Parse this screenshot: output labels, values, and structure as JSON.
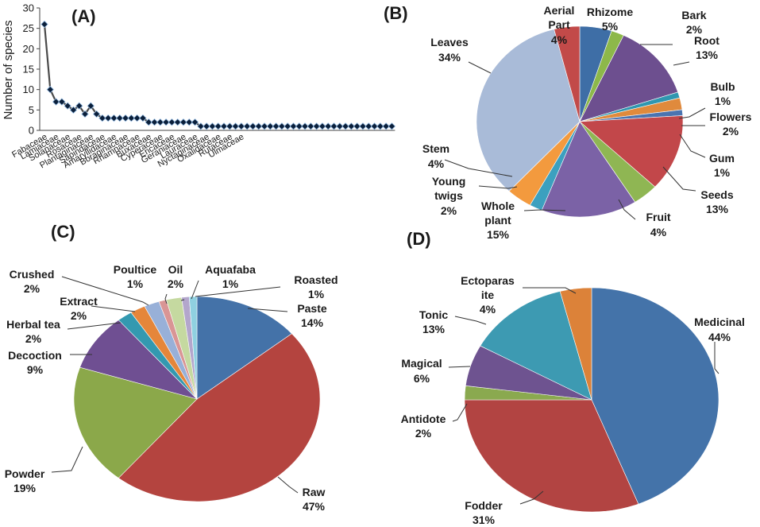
{
  "chart_data": [
    {
      "panel": "(A)",
      "type": "line",
      "title": "",
      "xlabel": "",
      "ylabel": "Number of species",
      "ylim": [
        0,
        30
      ],
      "yticks": [
        0,
        5,
        10,
        15,
        20,
        25,
        30
      ],
      "grid": false,
      "tick_labels": [
        "Fabaceae",
        "Lamiaceae",
        "Solanaceae",
        "Rosaceae",
        "Plantaginaceae",
        "Sapindaceae",
        "Amaryllidaceae",
        "Boraginaceae",
        "Rhamnaceae",
        "Buxaceae",
        "Cyperaceae",
        "Ericaceae",
        "Geraniaceae",
        "Lauraceae",
        "Nyctaginaceae",
        "Oxalidaceae",
        "Rutaceae",
        "Ulmaceae"
      ],
      "tick_positions": [
        0,
        2,
        4,
        6,
        8,
        10,
        12,
        14,
        16,
        18,
        20,
        22,
        24,
        26,
        28,
        30,
        32,
        34
      ],
      "values": [
        26,
        10,
        7,
        7,
        6,
        5,
        6,
        4,
        6,
        4,
        3,
        3,
        3,
        3,
        3,
        3,
        3,
        3,
        2,
        2,
        2,
        2,
        2,
        2,
        2,
        2,
        2,
        1,
        1,
        1,
        1,
        1,
        1,
        1,
        1,
        1,
        1,
        1,
        1,
        1,
        1,
        1,
        1,
        1,
        1,
        1,
        1,
        1,
        1,
        1,
        1,
        1,
        1,
        1,
        1,
        1,
        1,
        1,
        1,
        1,
        1
      ]
    },
    {
      "panel": "(B)",
      "type": "pie",
      "slices": [
        {
          "label": "Rhizome",
          "value": 5,
          "pct": "5%",
          "color": "#3e6ea6"
        },
        {
          "label": "Bark",
          "value": 2,
          "pct": "2%",
          "color": "#8db84a"
        },
        {
          "label": "Root",
          "value": 13,
          "pct": "13%",
          "color": "#6d4f8f"
        },
        {
          "label": "Bulb",
          "value": 1,
          "pct": "1%",
          "color": "#2f97b0"
        },
        {
          "label": "Flowers",
          "value": 2,
          "pct": "2%",
          "color": "#e08a3c"
        },
        {
          "label": "Gum",
          "value": 1,
          "pct": "1%",
          "color": "#4a74b0"
        },
        {
          "label": "Seeds",
          "value": 13,
          "pct": "13%",
          "color": "#c2474a"
        },
        {
          "label": "Fruit",
          "value": 4,
          "pct": "4%",
          "color": "#8fb653"
        },
        {
          "label": "Whole plant",
          "value": 15,
          "pct": "15%",
          "color": "#7b62a6"
        },
        {
          "label": "Young twigs",
          "value": 2,
          "pct": "2%",
          "color": "#3ca0bf"
        },
        {
          "label": "Stem",
          "value": 4,
          "pct": "4%",
          "color": "#f39a3e"
        },
        {
          "label": "Leaves",
          "value": 34,
          "pct": "34%",
          "color": "#a9bbd8"
        },
        {
          "label": "Aerial Part",
          "value": 4,
          "pct": "4%",
          "color": "#c24a49"
        }
      ]
    },
    {
      "panel": "(C)",
      "type": "pie",
      "slices": [
        {
          "label": "Paste",
          "value": 14,
          "pct": "14%",
          "color": "#4472a8"
        },
        {
          "label": "Raw",
          "value": 47,
          "pct": "47%",
          "color": "#b4443f"
        },
        {
          "label": "Powder",
          "value": 19,
          "pct": "19%",
          "color": "#8ba84a"
        },
        {
          "label": "Decoction",
          "value": 9,
          "pct": "9%",
          "color": "#6f4f92"
        },
        {
          "label": "Herbal tea",
          "value": 2,
          "pct": "2%",
          "color": "#3399b0"
        },
        {
          "label": "Extract",
          "value": 2,
          "pct": "2%",
          "color": "#e5863a"
        },
        {
          "label": "Crushed",
          "value": 2,
          "pct": "2%",
          "color": "#98b0d8"
        },
        {
          "label": "Poultice",
          "value": 1,
          "pct": "1%",
          "color": "#d99595"
        },
        {
          "label": "Oil",
          "value": 2,
          "pct": "2%",
          "color": "#c5d9a0"
        },
        {
          "label": "Aquafaba",
          "value": 1,
          "pct": "1%",
          "color": "#b3a6cc"
        },
        {
          "label": "Roasted",
          "value": 1,
          "pct": "1%",
          "color": "#8fd0e0"
        }
      ]
    },
    {
      "panel": "(D)",
      "type": "pie",
      "slices": [
        {
          "label": "Medicinal",
          "value": 44,
          "pct": "44%",
          "color": "#4473a9"
        },
        {
          "label": "Fodder",
          "value": 31,
          "pct": "31%",
          "color": "#b24442"
        },
        {
          "label": "Antidote",
          "value": 2,
          "pct": "2%",
          "color": "#8aa94f"
        },
        {
          "label": "Magical",
          "value": 6,
          "pct": "6%",
          "color": "#6e5390"
        },
        {
          "label": "Tonic",
          "value": 13,
          "pct": "13%",
          "color": "#3d9ab2"
        },
        {
          "label": "Ectoparasite",
          "value": 4,
          "pct": "4%",
          "color": "#dc8239"
        }
      ]
    }
  ]
}
